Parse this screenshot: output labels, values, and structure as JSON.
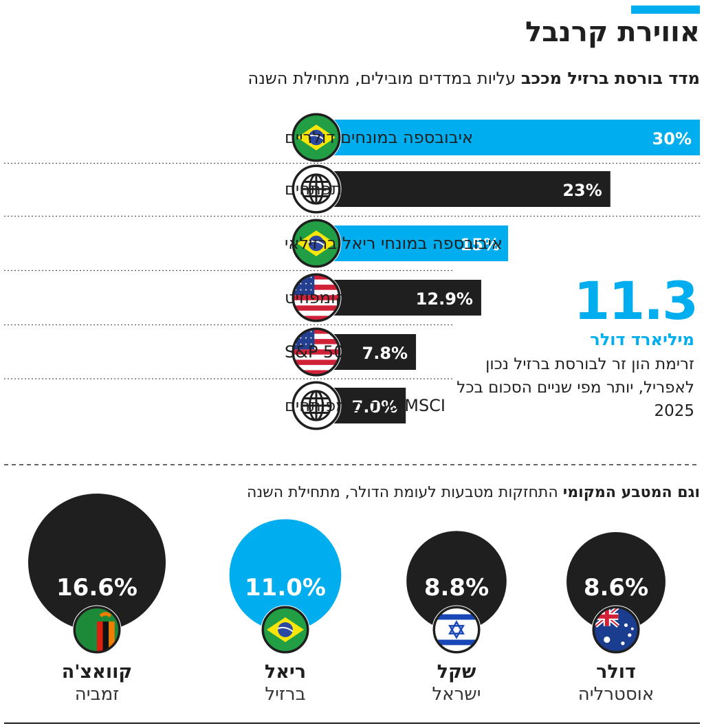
{
  "title": "אווירת קרנבל",
  "bars_section": {
    "headline_bold": "מדד בורסת ברזיל מככב",
    "headline_sub": "עליות במדדים מובילים, מתחילת השנה"
  },
  "highlight": {
    "number": "11.3",
    "unit": "מיליארד דולר",
    "description": "זרימת הון זר לבורסת ברזיל נכון לאפריל, יותר מפי שניים הסכום בכל 2025"
  },
  "currency_section": {
    "headline_bold": "וגם המטבע המקומי",
    "headline_sub": "התחזקות מטבעות לעומת הדולר, מתחילת השנה"
  },
  "colors": {
    "accent": "#00aeef",
    "dark": "#1f1f1f",
    "white": "#ffffff"
  },
  "chart_data": [
    {
      "type": "bar",
      "categories": [
        "איבובספה במונחים דולריים",
        "MSCI שווקים מתפתחים",
        "איבובספה במונחי ריאל ברזילאי",
        "נאסד\"ק קומפוזיט",
        "S&P 500",
        "MSCI שווקים מפותחים"
      ],
      "values": [
        30,
        23,
        15,
        12.9,
        7.8,
        7.0
      ],
      "value_labels": [
        "30%",
        "23%",
        "15%",
        "12.9%",
        "7.8%",
        "7.0%"
      ],
      "icons": [
        "brazil-flag-icon",
        "globe-icon",
        "brazil-flag-icon",
        "usa-flag-icon",
        "usa-flag-icon",
        "globe-icon"
      ],
      "colors": [
        "#00aeef",
        "#1f1f1f",
        "#00aeef",
        "#1f1f1f",
        "#1f1f1f",
        "#1f1f1f"
      ],
      "unit": "%"
    },
    {
      "type": "bubble",
      "categories": [
        "דולר",
        "שקל",
        "ריאל",
        "קוואצ'ה"
      ],
      "countries": [
        "אוסטרליה",
        "ישראל",
        "ברזיל",
        "זמביה"
      ],
      "values": [
        8.6,
        8.8,
        11.0,
        16.6
      ],
      "value_labels": [
        "8.6%",
        "8.8%",
        "11.0%",
        "16.6%"
      ],
      "icons": [
        "australia-flag-icon",
        "israel-flag-icon",
        "brazil-flag-icon",
        "zambia-flag-icon"
      ],
      "colors": [
        "#1f1f1f",
        "#1f1f1f",
        "#00aeef",
        "#1f1f1f"
      ],
      "unit": "%"
    }
  ]
}
